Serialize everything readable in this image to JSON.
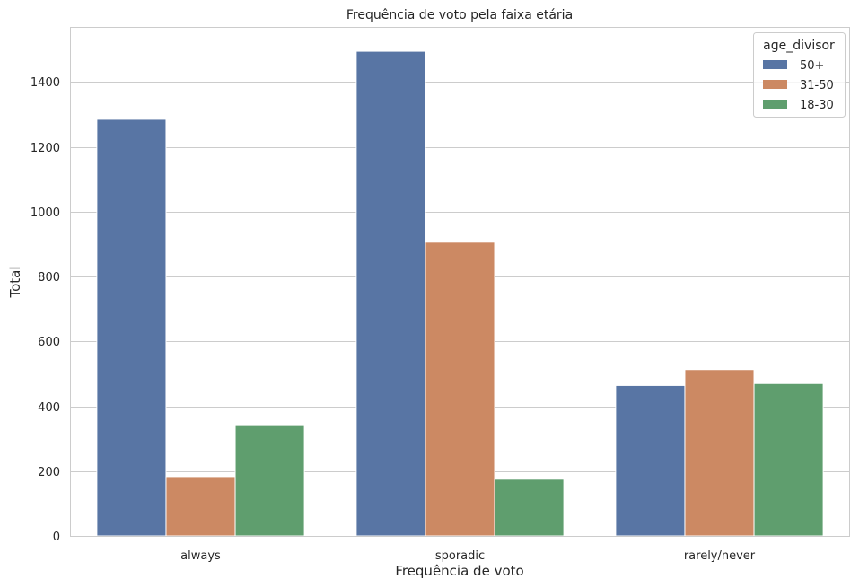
{
  "chart_data": {
    "type": "bar",
    "title": "Frequência de voto pela faixa etária",
    "xlabel": "Frequência de voto",
    "ylabel": "Total",
    "categories": [
      "always",
      "sporadic",
      "rarely/never"
    ],
    "series": [
      {
        "name": "50+",
        "color": "#5875a4",
        "values": [
          1285,
          1495,
          464
        ]
      },
      {
        "name": "31-50",
        "color": "#cc8963",
        "values": [
          183,
          906,
          513
        ]
      },
      {
        "name": "18-30",
        "color": "#5f9e6e",
        "values": [
          343,
          175,
          470
        ]
      }
    ],
    "ylim": [
      0,
      1570
    ],
    "yticks": [
      0,
      200,
      400,
      600,
      800,
      1000,
      1200,
      1400
    ],
    "grid": true,
    "legend": {
      "title": "age_divisor",
      "position": "top-right"
    }
  }
}
